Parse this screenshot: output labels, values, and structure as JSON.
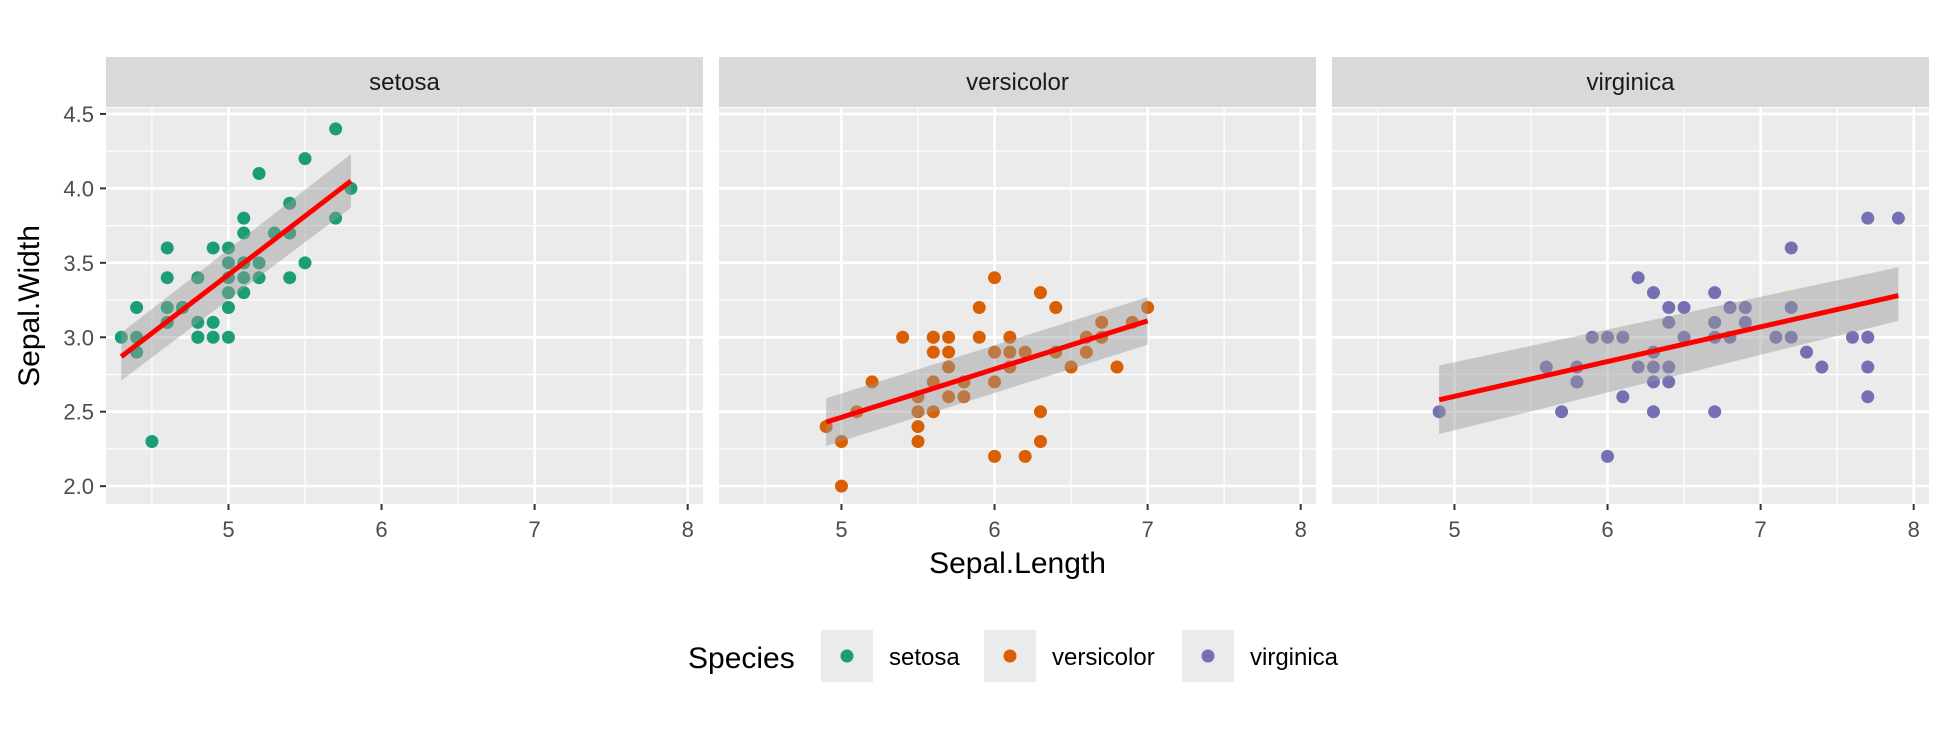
{
  "chart_data": {
    "type": "scatter",
    "facet_by": "Species",
    "xlabel": "Sepal.Length",
    "ylabel": "Sepal.Width",
    "xlim": [
      4.2,
      8.1
    ],
    "ylim": [
      1.88,
      4.54
    ],
    "x_ticks": [
      5,
      6,
      7,
      8
    ],
    "y_ticks": [
      2.0,
      2.5,
      3.0,
      3.5,
      4.0,
      4.5
    ],
    "y_tick_labels": [
      "2.0",
      "2.5",
      "3.0",
      "3.5",
      "4.0",
      "4.5"
    ],
    "grid": true,
    "legend_position": "bottom",
    "legend_title": "Species",
    "smooth": {
      "method": "lm",
      "color": "#ff0000",
      "band_color": "#999999",
      "se": true
    },
    "panels": [
      {
        "name": "setosa",
        "color": "#1b9e77",
        "x": [
          4.3,
          4.4,
          4.4,
          4.4,
          4.5,
          4.6,
          4.6,
          4.6,
          4.6,
          4.6,
          4.7,
          4.7,
          4.8,
          4.8,
          4.8,
          4.8,
          4.9,
          4.9,
          4.9,
          5.0,
          5.0,
          5.0,
          5.0,
          5.0,
          5.0,
          5.1,
          5.1,
          5.1,
          5.1,
          5.1,
          5.1,
          5.2,
          5.2,
          5.2,
          5.3,
          5.4,
          5.4,
          5.4,
          5.5,
          5.5,
          5.7,
          5.7,
          5.8
        ],
        "y": [
          3.0,
          2.9,
          3.0,
          3.2,
          2.3,
          3.1,
          3.2,
          3.4,
          3.6,
          3.1,
          3.2,
          3.2,
          3.0,
          3.1,
          3.4,
          3.0,
          3.0,
          3.1,
          3.6,
          3.0,
          3.2,
          3.3,
          3.4,
          3.5,
          3.6,
          3.3,
          3.4,
          3.5,
          3.7,
          3.8,
          3.5,
          3.4,
          3.5,
          4.1,
          3.7,
          3.4,
          3.7,
          3.9,
          3.5,
          4.2,
          3.8,
          4.4,
          4.0
        ],
        "fit": {
          "x": [
            4.3,
            5.8
          ],
          "y": [
            2.87,
            4.05
          ],
          "band_lower": [
            2.71,
            3.87
          ],
          "band_upper": [
            3.03,
            4.23
          ]
        }
      },
      {
        "name": "versicolor",
        "color": "#d95f02",
        "x": [
          4.9,
          5.0,
          5.0,
          5.1,
          5.2,
          5.4,
          5.5,
          5.5,
          5.5,
          5.5,
          5.6,
          5.6,
          5.6,
          5.6,
          5.6,
          5.7,
          5.7,
          5.7,
          5.7,
          5.8,
          5.8,
          5.9,
          5.9,
          6.0,
          6.0,
          6.0,
          6.0,
          6.1,
          6.1,
          6.1,
          6.2,
          6.2,
          6.3,
          6.3,
          6.3,
          6.4,
          6.4,
          6.5,
          6.6,
          6.6,
          6.7,
          6.7,
          6.8,
          6.9,
          7.0
        ],
        "y": [
          2.4,
          2.0,
          2.3,
          2.5,
          2.7,
          3.0,
          2.3,
          2.4,
          2.5,
          2.6,
          2.5,
          2.7,
          2.9,
          3.0,
          3.0,
          2.6,
          2.8,
          2.9,
          3.0,
          2.6,
          2.7,
          3.0,
          3.2,
          2.2,
          2.7,
          2.9,
          3.4,
          2.8,
          2.9,
          3.0,
          2.2,
          2.9,
          2.3,
          2.5,
          3.3,
          2.9,
          3.2,
          2.8,
          2.9,
          3.0,
          3.0,
          3.1,
          2.8,
          3.1,
          3.2
        ],
        "fit": {
          "x": [
            4.9,
            7.0
          ],
          "y": [
            2.43,
            3.11
          ],
          "band_lower": [
            2.27,
            2.95
          ],
          "band_upper": [
            2.59,
            3.27
          ]
        }
      },
      {
        "name": "virginica",
        "color": "#7570b3",
        "x": [
          4.9,
          5.6,
          5.7,
          5.8,
          5.8,
          5.8,
          5.9,
          6.0,
          6.0,
          6.1,
          6.1,
          6.2,
          6.2,
          6.3,
          6.3,
          6.3,
          6.3,
          6.3,
          6.4,
          6.4,
          6.4,
          6.4,
          6.5,
          6.5,
          6.7,
          6.7,
          6.7,
          6.7,
          6.8,
          6.8,
          6.9,
          6.9,
          7.1,
          7.2,
          7.2,
          7.2,
          7.3,
          7.4,
          7.6,
          7.7,
          7.7,
          7.7,
          7.7,
          7.9
        ],
        "y": [
          2.5,
          2.8,
          2.5,
          2.7,
          2.8,
          2.7,
          3.0,
          2.2,
          3.0,
          2.6,
          3.0,
          2.8,
          3.4,
          2.5,
          2.7,
          2.8,
          2.9,
          3.3,
          2.7,
          2.8,
          3.1,
          3.2,
          3.0,
          3.2,
          2.5,
          3.0,
          3.1,
          3.3,
          3.0,
          3.2,
          3.1,
          3.2,
          3.0,
          3.0,
          3.2,
          3.6,
          2.9,
          2.8,
          3.0,
          2.6,
          2.8,
          3.0,
          3.8,
          3.8
        ],
        "fit": {
          "x": [
            4.9,
            7.9
          ],
          "y": [
            2.58,
            3.28
          ],
          "band_lower": [
            2.35,
            3.11
          ],
          "band_upper": [
            2.81,
            3.47
          ]
        }
      }
    ]
  }
}
